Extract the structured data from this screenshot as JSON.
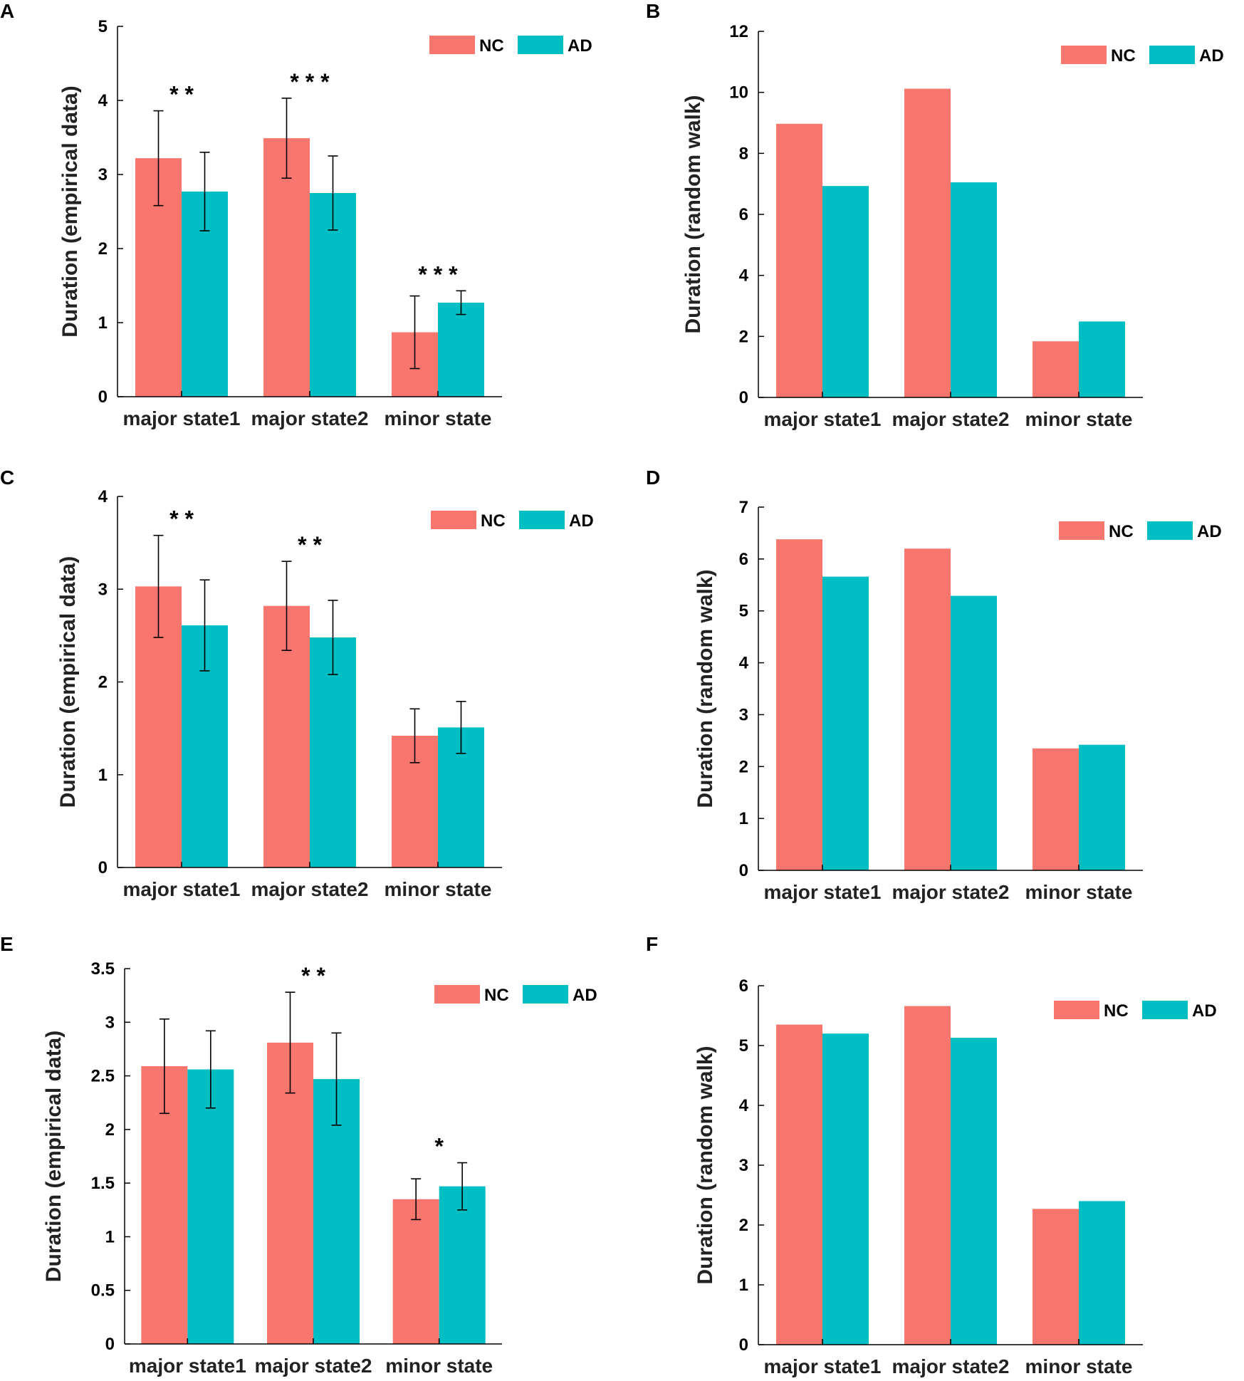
{
  "figure": {
    "colors": {
      "NC": "#f8766d",
      "AD": "#00bfc4",
      "axis": "#000000"
    },
    "panels": [
      {
        "letter": "A"
      },
      {
        "letter": "B"
      },
      {
        "letter": "C"
      },
      {
        "letter": "D"
      },
      {
        "letter": "E"
      },
      {
        "letter": "F"
      }
    ]
  },
  "chart_data": [
    {
      "panel": "A",
      "type": "bar",
      "title": "",
      "ylabel": "Duration (empirical data)",
      "xlabel": "",
      "categories": [
        "major state1",
        "major state2",
        "minor state"
      ],
      "ylim": [
        0,
        5
      ],
      "yticks": [
        "0",
        "1",
        "2",
        "3",
        "4",
        "5"
      ],
      "legend": "top-right",
      "series": [
        {
          "name": "NC",
          "values": [
            3.22,
            3.49,
            0.87
          ],
          "errors": [
            0.64,
            0.54,
            0.49
          ]
        },
        {
          "name": "AD",
          "values": [
            2.77,
            2.75,
            1.27
          ],
          "errors": [
            0.53,
            0.5,
            0.16
          ]
        }
      ],
      "annotations": [
        "* *",
        "* * *",
        "* * *"
      ]
    },
    {
      "panel": "B",
      "type": "bar",
      "title": "",
      "ylabel": "Duration (random walk)",
      "xlabel": "",
      "categories": [
        "major state1",
        "major state2",
        "minor state"
      ],
      "ylim": [
        0,
        12
      ],
      "yticks": [
        "0",
        "2",
        "4",
        "6",
        "8",
        "10",
        "12"
      ],
      "legend": "top-right",
      "series": [
        {
          "name": "NC",
          "values": [
            8.97,
            10.12,
            1.84
          ]
        },
        {
          "name": "AD",
          "values": [
            6.93,
            7.05,
            2.49
          ]
        }
      ]
    },
    {
      "panel": "C",
      "type": "bar",
      "title": "",
      "ylabel": "Duration (empirical data)",
      "xlabel": "",
      "categories": [
        "major state1",
        "major state2",
        "minor state"
      ],
      "ylim": [
        0,
        4
      ],
      "yticks": [
        "0",
        "1",
        "2",
        "3",
        "4"
      ],
      "legend": "top-right",
      "series": [
        {
          "name": "NC",
          "values": [
            3.03,
            2.82,
            1.42
          ],
          "errors": [
            0.55,
            0.48,
            0.29
          ]
        },
        {
          "name": "AD",
          "values": [
            2.61,
            2.48,
            1.51
          ],
          "errors": [
            0.49,
            0.4,
            0.28
          ]
        }
      ],
      "annotations": [
        "* *",
        "* *",
        ""
      ]
    },
    {
      "panel": "D",
      "type": "bar",
      "title": "",
      "ylabel": "Duration (random walk)",
      "xlabel": "",
      "categories": [
        "major state1",
        "major state2",
        "minor state"
      ],
      "ylim": [
        0,
        7
      ],
      "yticks": [
        "0",
        "1",
        "2",
        "3",
        "4",
        "5",
        "6",
        "7"
      ],
      "legend": "top-right",
      "series": [
        {
          "name": "NC",
          "values": [
            6.38,
            6.2,
            2.35
          ]
        },
        {
          "name": "AD",
          "values": [
            5.66,
            5.29,
            2.42
          ]
        }
      ]
    },
    {
      "panel": "E",
      "type": "bar",
      "title": "",
      "ylabel": "Duration (empirical data)",
      "xlabel": "",
      "categories": [
        "major state1",
        "major state2",
        "minor state"
      ],
      "ylim": [
        0,
        3.5
      ],
      "yticks": [
        "0",
        "0.5",
        "1",
        "1.5",
        "2",
        "2.5",
        "3",
        "3.5"
      ],
      "legend": "top-right",
      "series": [
        {
          "name": "NC",
          "values": [
            2.59,
            2.81,
            1.35
          ],
          "errors": [
            0.44,
            0.47,
            0.19
          ]
        },
        {
          "name": "AD",
          "values": [
            2.56,
            2.47,
            1.47
          ],
          "errors": [
            0.36,
            0.43,
            0.22
          ]
        }
      ],
      "annotations": [
        "",
        "* *",
        "*"
      ]
    },
    {
      "panel": "F",
      "type": "bar",
      "title": "",
      "ylabel": "Duration (random walk)",
      "xlabel": "",
      "categories": [
        "major state1",
        "major state2",
        "minor state"
      ],
      "ylim": [
        0,
        6
      ],
      "yticks": [
        "0",
        "1",
        "2",
        "3",
        "4",
        "5",
        "6"
      ],
      "legend": "top-right",
      "series": [
        {
          "name": "NC",
          "values": [
            5.35,
            5.66,
            2.27
          ]
        },
        {
          "name": "AD",
          "values": [
            5.2,
            5.13,
            2.4
          ]
        }
      ]
    }
  ]
}
